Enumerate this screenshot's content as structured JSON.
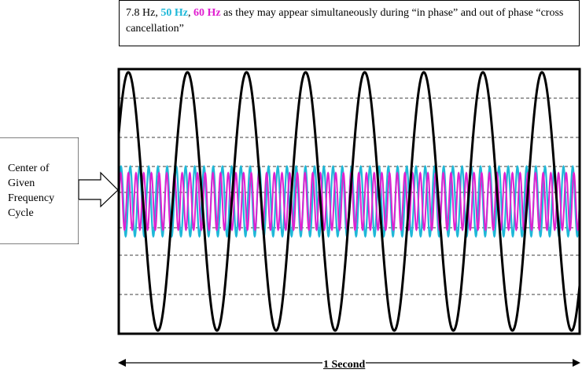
{
  "caption": {
    "part1": "7.8 Hz",
    "sep1": ", ",
    "part2": "50 Hz",
    "sep2": ", ",
    "part3": "60 Hz",
    "rest": " as they may appear simultaneously during “in phase” and  out of phase “cross cancellation”"
  },
  "side_label": [
    "Center of",
    "Given",
    "Frequency",
    "Cycle"
  ],
  "x_axis_label": "1 Second",
  "colors": {
    "wave_7_8": "#000000",
    "wave_50": "#1fb8d8",
    "wave_60": "#e020d0",
    "frame": "#000000",
    "grid": "#000000"
  },
  "waves": [
    {
      "label": "7.8 Hz",
      "frequency_hz": 7.8,
      "relative_amplitude": 1.0
    },
    {
      "label": "50 Hz",
      "frequency_hz": 50,
      "relative_amplitude": 0.27
    },
    {
      "label": "60 Hz",
      "frequency_hz": 60,
      "relative_amplitude": 0.22
    }
  ],
  "duration_s": 1
}
